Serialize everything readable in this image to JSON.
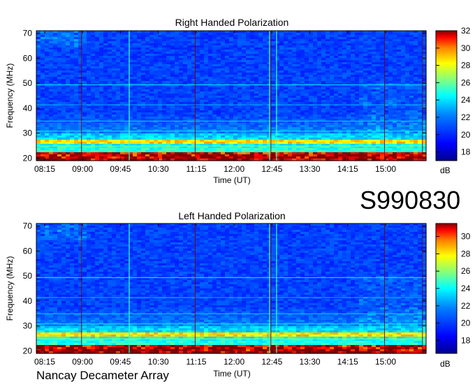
{
  "chart_data": [
    {
      "type": "heatmap",
      "title": "Right Handed Polarization",
      "xlabel": "Time (UT)",
      "ylabel": "Frequency (MHz)",
      "xticks": [
        "08:15",
        "09:00",
        "09:45",
        "10:30",
        "11:15",
        "12:00",
        "12:45",
        "13:30",
        "14:15",
        "15:00"
      ],
      "yticks": [
        "20",
        "30",
        "40",
        "50",
        "60",
        "70"
      ],
      "ylim": [
        19,
        71
      ],
      "colorbar": {
        "label": "dB",
        "ticks": [
          "18",
          "20",
          "22",
          "24",
          "26",
          "28",
          "30",
          "32"
        ],
        "range": [
          17,
          32
        ]
      },
      "colormap": [
        "#00008f",
        "#0000ff",
        "#0080ff",
        "#00ffff",
        "#80ff80",
        "#ffff00",
        "#ff8000",
        "#ff0000",
        "#800000"
      ]
    },
    {
      "type": "heatmap",
      "title": "Left Handed Polarization",
      "xlabel": "Time (UT)",
      "ylabel": "Frequency (MHz)",
      "xticks": [
        "08:15",
        "09:00",
        "09:45",
        "10:30",
        "11:15",
        "12:00",
        "12:45",
        "13:30",
        "14:15",
        "15:00"
      ],
      "yticks": [
        "20",
        "30",
        "40",
        "50",
        "60",
        "70"
      ],
      "ylim": [
        19,
        71
      ],
      "colorbar": {
        "label": "dB",
        "ticks": [
          "18",
          "20",
          "22",
          "24",
          "26",
          "28",
          "30"
        ],
        "range": [
          16.5,
          31.5
        ]
      },
      "colormap": [
        "#00008f",
        "#0000ff",
        "#0080ff",
        "#00ffff",
        "#80ff80",
        "#ffff00",
        "#ff8000",
        "#ff0000",
        "#800000"
      ]
    }
  ],
  "observation_id": "S990830",
  "instrument": "Nancay Decameter Array"
}
